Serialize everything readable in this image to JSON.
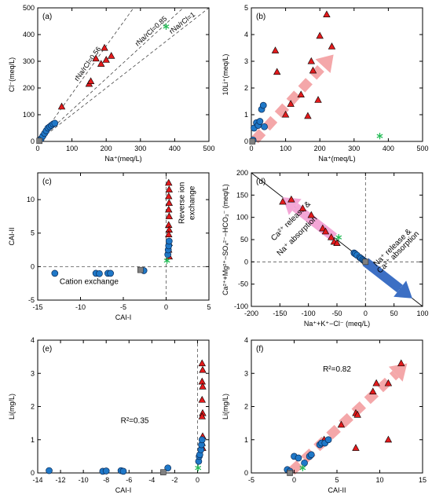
{
  "chart_data": [
    {
      "panel": "a",
      "type": "scatter",
      "panel_label": "(a)",
      "xlabel": "Na⁺(meq/L)",
      "ylabel": "Cl⁻(meq/L)",
      "xlim": [
        0,
        500
      ],
      "ylim": [
        0,
        500
      ],
      "xticks": [
        0,
        100,
        200,
        300,
        400,
        500
      ],
      "yticks": [
        0,
        100,
        200,
        300,
        400,
        500
      ],
      "reference_lines": [
        {
          "label": "rNa/rCl=0.56",
          "slope": 1.7857
        },
        {
          "label": "rNa/rCl=0.85",
          "slope": 1.1765
        },
        {
          "label": "rNa/rCl=1",
          "slope": 1.0
        }
      ],
      "series": [
        {
          "marker": "triangle",
          "color": "#e31a1c",
          "points": [
            [
              70,
              130
            ],
            [
              150,
              215
            ],
            [
              155,
              225
            ],
            [
              170,
              310
            ],
            [
              185,
              290
            ],
            [
              195,
              350
            ],
            [
              200,
              305
            ],
            [
              215,
              320
            ]
          ]
        },
        {
          "marker": "circle",
          "color": "#1f78c8",
          "points": [
            [
              10,
              10
            ],
            [
              15,
              20
            ],
            [
              20,
              30
            ],
            [
              25,
              40
            ],
            [
              30,
              50
            ],
            [
              35,
              55
            ],
            [
              40,
              60
            ],
            [
              45,
              65
            ],
            [
              50,
              68
            ]
          ]
        },
        {
          "marker": "square",
          "color": "#808080",
          "points": [
            [
              5,
              2
            ]
          ]
        },
        {
          "marker": "asterisk",
          "color": "#22bb55",
          "points": [
            [
              375,
              430
            ]
          ]
        }
      ]
    },
    {
      "panel": "b",
      "type": "scatter",
      "panel_label": "(b)",
      "xlabel": "Na⁺(meq/L)",
      "ylabel": "10Li⁺(meq/L)",
      "xlim": [
        0,
        500
      ],
      "ylim": [
        0,
        5
      ],
      "xticks": [
        0,
        100,
        200,
        300,
        400,
        500
      ],
      "yticks": [
        0,
        1,
        2,
        3,
        4,
        5
      ],
      "series": [
        {
          "marker": "triangle",
          "color": "#e31a1c",
          "points": [
            [
              70,
              3.4
            ],
            [
              75,
              2.6
            ],
            [
              100,
              1.0
            ],
            [
              115,
              1.4
            ],
            [
              145,
              1.75
            ],
            [
              165,
              0.95
            ],
            [
              175,
              3.0
            ],
            [
              180,
              2.65
            ],
            [
              195,
              1.55
            ],
            [
              200,
              3.95
            ],
            [
              220,
              4.75
            ],
            [
              235,
              3.55
            ]
          ]
        },
        {
          "marker": "circle",
          "color": "#1f78c8",
          "points": [
            [
              5,
              0.05
            ],
            [
              8,
              0.5
            ],
            [
              15,
              0.7
            ],
            [
              20,
              0.6
            ],
            [
              25,
              0.75
            ],
            [
              30,
              1.2
            ],
            [
              35,
              1.35
            ],
            [
              38,
              0.55
            ]
          ]
        },
        {
          "marker": "square",
          "color": "#808080",
          "points": [
            [
              3,
              0.0
            ]
          ]
        },
        {
          "marker": "asterisk",
          "color": "#22bb55",
          "points": [
            [
              375,
              0.2
            ]
          ]
        }
      ]
    },
    {
      "panel": "c",
      "type": "scatter",
      "panel_label": "(c)",
      "xlabel": "CAI-I",
      "ylabel": "CAI-II",
      "xlim": [
        -15,
        5
      ],
      "ylim": [
        -5,
        14
      ],
      "xticks": [
        -15,
        -10,
        -5,
        0,
        5
      ],
      "yticks": [
        -5,
        0,
        5,
        10
      ],
      "annotations": [
        "Reverse ion",
        "exchange",
        "Cation exchange"
      ],
      "series": [
        {
          "marker": "triangle",
          "color": "#e31a1c",
          "points": [
            [
              0.3,
              12.5
            ],
            [
              0.35,
              11.5
            ],
            [
              0.3,
              10.5
            ],
            [
              0.35,
              9.5
            ],
            [
              0.3,
              8.5
            ],
            [
              0.35,
              7.5
            ],
            [
              0.3,
              6.2
            ],
            [
              0.35,
              5.5
            ],
            [
              0.3,
              4.8
            ],
            [
              0.35,
              3.5
            ],
            [
              0.3,
              2.5
            ],
            [
              0.35,
              1.5
            ]
          ]
        },
        {
          "marker": "circle",
          "color": "#1f78c8",
          "points": [
            [
              -13,
              -1.0
            ],
            [
              -8.2,
              -1.0
            ],
            [
              -7.8,
              -1.05
            ],
            [
              -6.8,
              -1.0
            ],
            [
              -6.5,
              -1.0
            ],
            [
              -2.6,
              -0.6
            ],
            [
              0.2,
              1.8
            ],
            [
              0.25,
              2.5
            ],
            [
              0.3,
              3.1
            ],
            [
              0.35,
              3.8
            ]
          ]
        },
        {
          "marker": "square",
          "color": "#808080",
          "points": [
            [
              -3,
              -0.5
            ]
          ]
        },
        {
          "marker": "asterisk",
          "color": "#22bb55",
          "points": [
            [
              0.1,
              0.9
            ]
          ]
        }
      ]
    },
    {
      "panel": "d",
      "type": "scatter",
      "panel_label": "(d)",
      "xlabel": "Na⁺+K⁺−Cl⁻ (meq/L)",
      "ylabel": "Ca²⁺+Mg²⁺−SO₄²⁻−HCO₃⁻ (meq/L)",
      "xlim": [
        -200,
        100
      ],
      "ylim": [
        -100,
        200
      ],
      "xticks": [
        -200,
        -150,
        -100,
        -50,
        0,
        50,
        100
      ],
      "yticks": [
        -100,
        -50,
        0,
        50,
        100,
        150,
        200
      ],
      "annotations": [
        "Ca²⁺ release &",
        "Na⁺ absorption",
        "Na⁺ release &",
        "Ca²⁺ absorption"
      ],
      "series": [
        {
          "marker": "triangle",
          "color": "#e31a1c",
          "points": [
            [
              -145,
              135
            ],
            [
              -130,
              140
            ],
            [
              -110,
              120
            ],
            [
              -95,
              105
            ],
            [
              -75,
              75
            ],
            [
              -70,
              68
            ],
            [
              -60,
              55
            ],
            [
              -55,
              45
            ],
            [
              -50,
              42
            ]
          ]
        },
        {
          "marker": "circle",
          "color": "#1f78c8",
          "points": [
            [
              -20,
              20
            ],
            [
              -18,
              18
            ],
            [
              -15,
              15
            ],
            [
              -10,
              10
            ],
            [
              -8,
              8
            ],
            [
              -5,
              5
            ],
            [
              -3,
              3
            ],
            [
              -1,
              1
            ]
          ]
        },
        {
          "marker": "square",
          "color": "#808080",
          "points": [
            [
              0,
              0
            ]
          ]
        },
        {
          "marker": "asterisk",
          "color": "#22bb55",
          "points": [
            [
              -47,
              55
            ]
          ]
        }
      ]
    },
    {
      "panel": "e",
      "type": "scatter",
      "panel_label": "(e)",
      "xlabel": "CAI-I",
      "ylabel": "Li(mg/L)",
      "xlim": [
        -14,
        1
      ],
      "ylim": [
        0,
        4
      ],
      "xticks": [
        -14,
        -12,
        -10,
        -8,
        -6,
        -4,
        -2,
        0
      ],
      "yticks": [
        0,
        1,
        2,
        3,
        4
      ],
      "annotations": [
        "R²=0.35"
      ],
      "series": [
        {
          "marker": "triangle",
          "color": "#e31a1c",
          "points": [
            [
              0.4,
              3.3
            ],
            [
              0.45,
              3.1
            ],
            [
              0.4,
              2.75
            ],
            [
              0.45,
              2.6
            ],
            [
              0.4,
              2.2
            ],
            [
              0.45,
              1.8
            ],
            [
              0.4,
              1.7
            ],
            [
              0.45,
              1.1
            ],
            [
              0.4,
              0.9
            ],
            [
              0.45,
              0.75
            ]
          ]
        },
        {
          "marker": "circle",
          "color": "#1f78c8",
          "points": [
            [
              -13,
              0.07
            ],
            [
              -8.3,
              0.05
            ],
            [
              -8,
              0.06
            ],
            [
              -6.7,
              0.07
            ],
            [
              -6.5,
              0.05
            ],
            [
              -2.6,
              0.15
            ],
            [
              0.1,
              0.35
            ],
            [
              0.15,
              0.5
            ],
            [
              0.2,
              0.55
            ],
            [
              0.3,
              0.7
            ],
            [
              0.35,
              0.85
            ],
            [
              0.4,
              1.0
            ]
          ]
        },
        {
          "marker": "square",
          "color": "#808080",
          "points": [
            [
              -3,
              0.02
            ]
          ]
        },
        {
          "marker": "asterisk",
          "color": "#22bb55",
          "points": [
            [
              0.05,
              0.15
            ]
          ]
        }
      ]
    },
    {
      "panel": "f",
      "type": "scatter",
      "panel_label": "(f)",
      "xlabel": "CAI-II",
      "ylabel": "Li(mg/L)",
      "xlim": [
        -5,
        15
      ],
      "ylim": [
        0,
        4
      ],
      "xticks": [
        -5,
        0,
        5,
        10,
        15
      ],
      "yticks": [
        0,
        1,
        2,
        3,
        4
      ],
      "annotations": [
        "R²=0.82"
      ],
      "series": [
        {
          "marker": "triangle",
          "color": "#e31a1c",
          "points": [
            [
              3.5,
              1.0
            ],
            [
              5.5,
              1.45
            ],
            [
              7.2,
              0.75
            ],
            [
              7.2,
              1.8
            ],
            [
              7.4,
              1.75
            ],
            [
              9.6,
              2.7
            ],
            [
              9.2,
              2.45
            ],
            [
              11,
              2.7
            ],
            [
              11,
              1.0
            ],
            [
              12.5,
              3.3
            ]
          ]
        },
        {
          "marker": "circle",
          "color": "#1f78c8",
          "points": [
            [
              -0.8,
              0.1
            ],
            [
              -0.5,
              0.05
            ],
            [
              0,
              0.5
            ],
            [
              0.5,
              0.45
            ],
            [
              1.2,
              0.3
            ],
            [
              1.8,
              0.5
            ],
            [
              2,
              0.55
            ],
            [
              3,
              0.85
            ],
            [
              3.2,
              0.9
            ],
            [
              3.6,
              0.9
            ],
            [
              4,
              1.0
            ]
          ]
        },
        {
          "marker": "square",
          "color": "#808080",
          "points": [
            [
              -0.5,
              0.0
            ]
          ]
        },
        {
          "marker": "asterisk",
          "color": "#22bb55",
          "points": [
            [
              1,
              0.15
            ]
          ]
        }
      ]
    }
  ]
}
